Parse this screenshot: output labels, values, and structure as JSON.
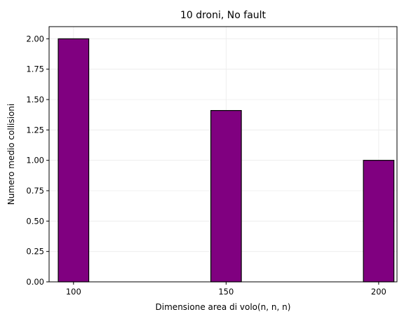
{
  "chart_data": {
    "type": "bar",
    "title": "10 droni, No fault",
    "xlabel": "Dimensione area di volo(n, n, n)",
    "ylabel": "Numero medio collisioni",
    "x": [
      100,
      150,
      200
    ],
    "values": [
      2.0,
      1.41,
      1.0
    ],
    "xlim": [
      92,
      206
    ],
    "ylim": [
      0,
      2.1
    ],
    "xticks": [
      100,
      150,
      200
    ],
    "xtick_labels": [
      "100",
      "150",
      "200"
    ],
    "yticks": [
      0,
      0.25,
      0.5,
      0.75,
      1.0,
      1.25,
      1.5,
      1.75,
      2.0
    ],
    "ytick_labels": [
      "0.00",
      "0.25",
      "0.50",
      "0.75",
      "1.00",
      "1.25",
      "1.50",
      "1.75",
      "2.00"
    ],
    "grid": true,
    "bar_color": "#800080",
    "bar_edge_color": "#000000"
  }
}
